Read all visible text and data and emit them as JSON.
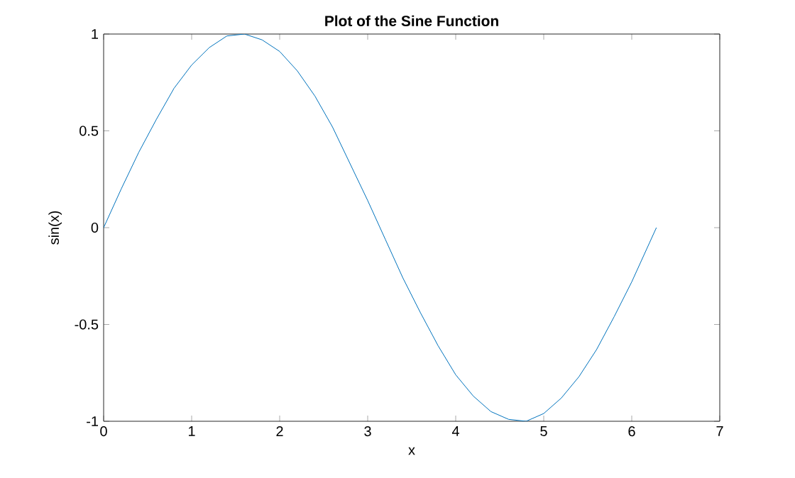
{
  "chart_data": {
    "type": "line",
    "title": "Plot of the Sine Function",
    "xlabel": "x",
    "ylabel": "sin(x)",
    "xlim": [
      0,
      7
    ],
    "ylim": [
      -1,
      1
    ],
    "xticks": [
      0,
      1,
      2,
      3,
      4,
      5,
      6,
      7
    ],
    "yticks": [
      -1,
      -0.5,
      0,
      0.5,
      1
    ],
    "series": [
      {
        "color": "#0072bd",
        "x": [
          0,
          0.2,
          0.4,
          0.6,
          0.8,
          1.0,
          1.2,
          1.4,
          1.6,
          1.8,
          2.0,
          2.2,
          2.4,
          2.6,
          2.8,
          3.0,
          3.2,
          3.4,
          3.6,
          3.8,
          4.0,
          4.2,
          4.4,
          4.6,
          4.8,
          5.0,
          5.2,
          5.4,
          5.6,
          5.8,
          6.0,
          6.2,
          6.28
        ],
        "values": [
          0,
          0.2,
          0.39,
          0.56,
          0.72,
          0.84,
          0.93,
          0.99,
          1.0,
          0.97,
          0.91,
          0.81,
          0.68,
          0.52,
          0.33,
          0.14,
          -0.06,
          -0.26,
          -0.44,
          -0.61,
          -0.76,
          -0.87,
          -0.95,
          -0.99,
          -1.0,
          -0.96,
          -0.88,
          -0.77,
          -0.63,
          -0.46,
          -0.28,
          -0.08,
          0
        ]
      }
    ]
  }
}
